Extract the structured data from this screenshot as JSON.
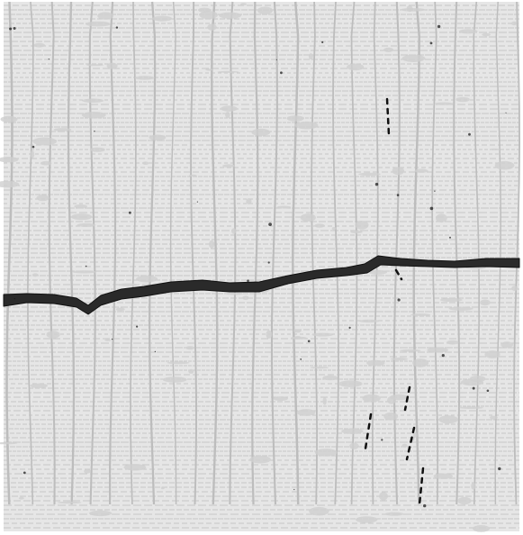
{
  "image": {
    "subject": "crack",
    "colors": {
      "background": "#ffffff",
      "surface": "#e6e6e6",
      "grid": "#bdbdbd",
      "speckle": "#cfcfcf",
      "crack": "#2a2a2a",
      "crack_core": "#111111"
    }
  }
}
